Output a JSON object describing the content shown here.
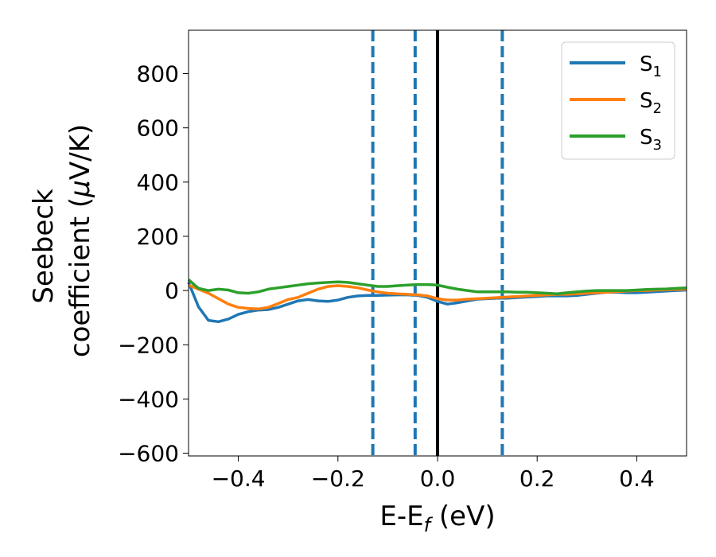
{
  "chart_data": {
    "type": "line",
    "xlabel_main": "E-E",
    "xlabel_sub": "f",
    "xlabel_unit": " (eV)",
    "ylabel_line1": "Seebeck",
    "ylabel_line2_text": "coefficient  (",
    "ylabel_line2_mu": "μ",
    "ylabel_line2_end": "V/K)",
    "xlim": [
      -0.5,
      0.5
    ],
    "ylim": [
      -610,
      960
    ],
    "x_ticks": [
      -0.4,
      -0.2,
      0.0,
      0.2,
      0.4
    ],
    "x_tick_labels": [
      "−0.4",
      "−0.2",
      "0.0",
      "0.2",
      "0.4"
    ],
    "y_ticks": [
      -600,
      -400,
      -200,
      0,
      200,
      400,
      600,
      800
    ],
    "y_tick_labels": [
      "−600",
      "−400",
      "−200",
      "0",
      "200",
      "400",
      "600",
      "800"
    ],
    "legend_position": "top-right",
    "vertical_lines": [
      {
        "x": -0.13,
        "style": "dashed",
        "color": "#1f77b4"
      },
      {
        "x": -0.045,
        "style": "dashed",
        "color": "#1f77b4"
      },
      {
        "x": 0.0,
        "style": "solid",
        "color": "#000000"
      },
      {
        "x": 0.13,
        "style": "dashed",
        "color": "#1f77b4"
      }
    ],
    "series": [
      {
        "name": "S",
        "name_sub": "1",
        "color": "#1f77b4",
        "x": [
          -0.5,
          -0.48,
          -0.46,
          -0.44,
          -0.42,
          -0.4,
          -0.38,
          -0.36,
          -0.34,
          -0.32,
          -0.3,
          -0.28,
          -0.26,
          -0.24,
          -0.22,
          -0.2,
          -0.18,
          -0.16,
          -0.14,
          -0.12,
          -0.1,
          -0.08,
          -0.06,
          -0.04,
          -0.02,
          0.0,
          0.02,
          0.04,
          0.06,
          0.08,
          0.1,
          0.12,
          0.14,
          0.16,
          0.18,
          0.2,
          0.22,
          0.24,
          0.26,
          0.28,
          0.3,
          0.32,
          0.34,
          0.36,
          0.38,
          0.4,
          0.42,
          0.44,
          0.46,
          0.48,
          0.5
        ],
        "y": [
          30,
          -60,
          -110,
          -115,
          -105,
          -88,
          -78,
          -72,
          -70,
          -62,
          -50,
          -38,
          -33,
          -38,
          -40,
          -35,
          -25,
          -20,
          -18,
          -18,
          -17,
          -16,
          -16,
          -18,
          -25,
          -40,
          -50,
          -45,
          -38,
          -32,
          -30,
          -28,
          -28,
          -26,
          -24,
          -22,
          -20,
          -20,
          -20,
          -18,
          -14,
          -10,
          -6,
          -6,
          -8,
          -8,
          -6,
          -4,
          -2,
          0,
          2
        ]
      },
      {
        "name": "S",
        "name_sub": "2",
        "color": "#ff7f0e",
        "x": [
          -0.5,
          -0.48,
          -0.46,
          -0.44,
          -0.42,
          -0.4,
          -0.38,
          -0.36,
          -0.34,
          -0.32,
          -0.3,
          -0.28,
          -0.26,
          -0.24,
          -0.22,
          -0.2,
          -0.18,
          -0.16,
          -0.14,
          -0.12,
          -0.1,
          -0.08,
          -0.06,
          -0.04,
          -0.02,
          0.0,
          0.02,
          0.04,
          0.06,
          0.08,
          0.1,
          0.12,
          0.14,
          0.16,
          0.18,
          0.2,
          0.22,
          0.24,
          0.26,
          0.28,
          0.3,
          0.32,
          0.34,
          0.36,
          0.38,
          0.4,
          0.42,
          0.44,
          0.46,
          0.48,
          0.5
        ],
        "y": [
          20,
          5,
          -10,
          -30,
          -50,
          -62,
          -66,
          -68,
          -62,
          -48,
          -33,
          -25,
          -10,
          5,
          15,
          18,
          15,
          10,
          2,
          -5,
          -10,
          -12,
          -14,
          -16,
          -20,
          -30,
          -35,
          -35,
          -32,
          -30,
          -28,
          -26,
          -24,
          -22,
          -20,
          -18,
          -16,
          -14,
          -14,
          -12,
          -10,
          -8,
          -6,
          -4,
          -2,
          0,
          0,
          2,
          3,
          4,
          5
        ]
      },
      {
        "name": "S",
        "name_sub": "3",
        "color": "#2ca02c",
        "x": [
          -0.5,
          -0.48,
          -0.46,
          -0.44,
          -0.42,
          -0.4,
          -0.38,
          -0.36,
          -0.34,
          -0.32,
          -0.3,
          -0.28,
          -0.26,
          -0.24,
          -0.22,
          -0.2,
          -0.18,
          -0.16,
          -0.14,
          -0.12,
          -0.1,
          -0.08,
          -0.06,
          -0.04,
          -0.02,
          0.0,
          0.02,
          0.04,
          0.06,
          0.08,
          0.1,
          0.12,
          0.14,
          0.16,
          0.18,
          0.2,
          0.22,
          0.24,
          0.26,
          0.28,
          0.3,
          0.32,
          0.34,
          0.36,
          0.38,
          0.4,
          0.42,
          0.44,
          0.46,
          0.48,
          0.5
        ],
        "y": [
          40,
          8,
          0,
          5,
          2,
          -8,
          -10,
          -5,
          5,
          10,
          15,
          20,
          25,
          28,
          30,
          32,
          30,
          25,
          20,
          15,
          15,
          18,
          20,
          22,
          22,
          20,
          12,
          5,
          0,
          -5,
          -5,
          -5,
          -5,
          -6,
          -6,
          -8,
          -10,
          -12,
          -8,
          -5,
          -2,
          0,
          0,
          0,
          0,
          2,
          4,
          5,
          6,
          8,
          10
        ]
      }
    ]
  }
}
